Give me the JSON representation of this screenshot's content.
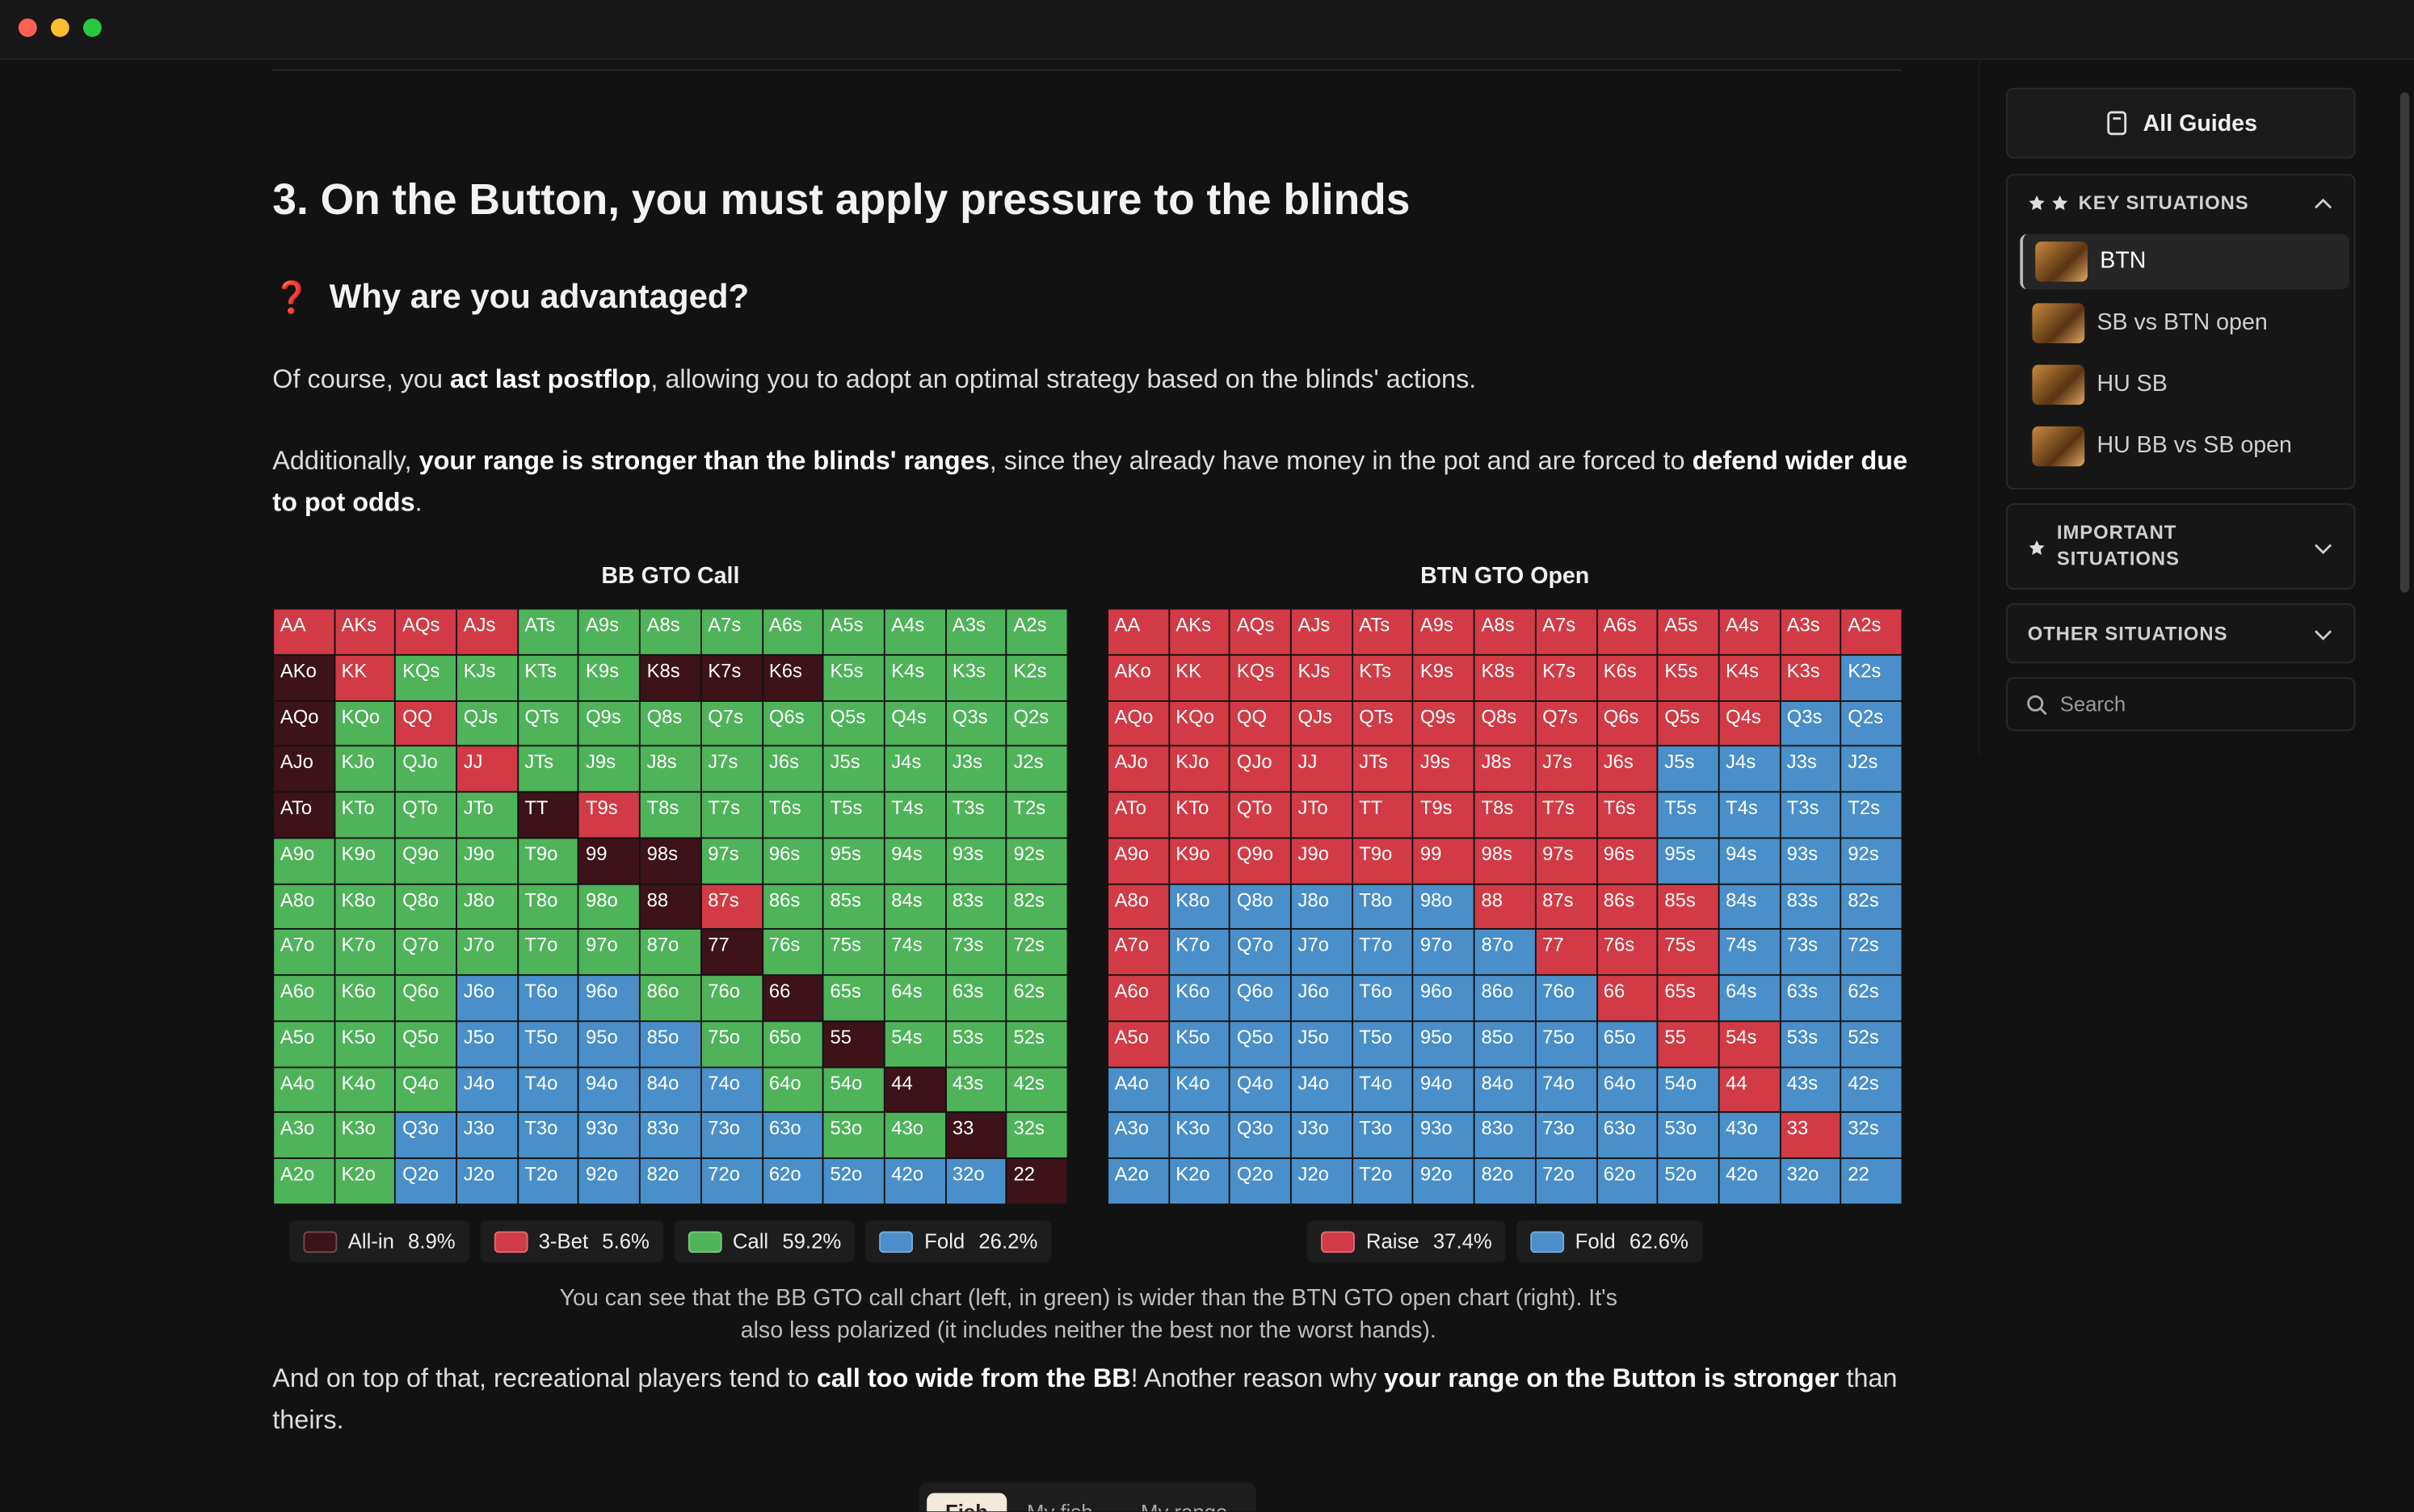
{
  "article": {
    "heading": "3. On the Button, you must apply pressure to the blinds",
    "subheading_icon": "❓",
    "subheading": "Why are you advantaged?",
    "paragraphs": [
      [
        {
          "text": "Of course, you "
        },
        {
          "text": "act last postflop",
          "bold": true
        },
        {
          "text": ", allowing you to adopt an optimal strategy based on the blinds' actions."
        }
      ],
      [
        {
          "text": "Additionally, "
        },
        {
          "text": "your range is stronger than the blinds' ranges",
          "bold": true
        },
        {
          "text": ", since they already have money in the pot and are forced to "
        },
        {
          "text": "defend wider due to pot odds",
          "bold": true
        },
        {
          "text": "."
        }
      ]
    ],
    "hands": [
      [
        "AA",
        "AKs",
        "AQs",
        "AJs",
        "ATs",
        "A9s",
        "A8s",
        "A7s",
        "A6s",
        "A5s",
        "A4s",
        "A3s",
        "A2s"
      ],
      [
        "AKo",
        "KK",
        "KQs",
        "KJs",
        "KTs",
        "K9s",
        "K8s",
        "K7s",
        "K6s",
        "K5s",
        "K4s",
        "K3s",
        "K2s"
      ],
      [
        "AQo",
        "KQo",
        "QQ",
        "QJs",
        "QTs",
        "Q9s",
        "Q8s",
        "Q7s",
        "Q6s",
        "Q5s",
        "Q4s",
        "Q3s",
        "Q2s"
      ],
      [
        "AJo",
        "KJo",
        "QJo",
        "JJ",
        "JTs",
        "J9s",
        "J8s",
        "J7s",
        "J6s",
        "J5s",
        "J4s",
        "J3s",
        "J2s"
      ],
      [
        "ATo",
        "KTo",
        "QTo",
        "JTo",
        "TT",
        "T9s",
        "T8s",
        "T7s",
        "T6s",
        "T5s",
        "T4s",
        "T3s",
        "T2s"
      ],
      [
        "A9o",
        "K9o",
        "Q9o",
        "J9o",
        "T9o",
        "99",
        "98s",
        "97s",
        "96s",
        "95s",
        "94s",
        "93s",
        "92s"
      ],
      [
        "A8o",
        "K8o",
        "Q8o",
        "J8o",
        "T8o",
        "98o",
        "88",
        "87s",
        "86s",
        "85s",
        "84s",
        "83s",
        "82s"
      ],
      [
        "A7o",
        "K7o",
        "Q7o",
        "J7o",
        "T7o",
        "97o",
        "87o",
        "77",
        "76s",
        "75s",
        "74s",
        "73s",
        "72s"
      ],
      [
        "A6o",
        "K6o",
        "Q6o",
        "J6o",
        "T6o",
        "96o",
        "86o",
        "76o",
        "66",
        "65s",
        "64s",
        "63s",
        "62s"
      ],
      [
        "A5o",
        "K5o",
        "Q5o",
        "J5o",
        "T5o",
        "95o",
        "85o",
        "75o",
        "65o",
        "55",
        "54s",
        "53s",
        "52s"
      ],
      [
        "A4o",
        "K4o",
        "Q4o",
        "J4o",
        "T4o",
        "94o",
        "84o",
        "74o",
        "64o",
        "54o",
        "44",
        "43s",
        "42s"
      ],
      [
        "A3o",
        "K3o",
        "Q3o",
        "J3o",
        "T3o",
        "93o",
        "83o",
        "73o",
        "63o",
        "53o",
        "43o",
        "33",
        "32s"
      ],
      [
        "A2o",
        "K2o",
        "Q2o",
        "J2o",
        "T2o",
        "92o",
        "82o",
        "72o",
        "62o",
        "52o",
        "42o",
        "32o",
        "22"
      ]
    ],
    "charts": [
      {
        "title": "BB GTO Call",
        "legend": [
          {
            "name": "All-in",
            "color": "#3d1219",
            "share": "8.9%"
          },
          {
            "name": "3-Bet",
            "color": "#d23a46",
            "share": "5.6%"
          },
          {
            "name": "Call",
            "color": "#4fb35a",
            "share": "59.2%"
          },
          {
            "name": "Fold",
            "color": "#4a8fc9",
            "share": "26.2%"
          }
        ],
        "actions": [
          [
            1,
            1,
            1,
            1,
            2,
            2,
            2,
            2,
            2,
            2,
            2,
            2,
            2
          ],
          [
            0,
            1,
            2,
            2,
            2,
            2,
            0,
            0,
            0,
            2,
            2,
            2,
            2
          ],
          [
            0,
            2,
            1,
            2,
            2,
            2,
            2,
            2,
            2,
            2,
            2,
            2,
            2
          ],
          [
            0,
            2,
            2,
            1,
            2,
            2,
            2,
            2,
            2,
            2,
            2,
            2,
            2
          ],
          [
            0,
            2,
            2,
            2,
            0,
            1,
            2,
            2,
            2,
            2,
            2,
            2,
            2
          ],
          [
            2,
            2,
            2,
            2,
            2,
            0,
            0,
            2,
            2,
            2,
            2,
            2,
            2
          ],
          [
            2,
            2,
            2,
            2,
            2,
            2,
            0,
            1,
            2,
            2,
            2,
            2,
            2
          ],
          [
            2,
            2,
            2,
            2,
            2,
            2,
            2,
            0,
            2,
            2,
            2,
            2,
            2
          ],
          [
            2,
            2,
            2,
            3,
            3,
            3,
            2,
            2,
            0,
            2,
            2,
            2,
            2
          ],
          [
            2,
            2,
            2,
            3,
            3,
            3,
            3,
            2,
            2,
            0,
            2,
            2,
            2
          ],
          [
            2,
            2,
            2,
            3,
            3,
            3,
            3,
            3,
            2,
            2,
            0,
            2,
            2
          ],
          [
            2,
            2,
            3,
            3,
            3,
            3,
            3,
            3,
            3,
            2,
            2,
            0,
            2
          ],
          [
            2,
            2,
            3,
            3,
            3,
            3,
            3,
            3,
            3,
            3,
            3,
            3,
            0
          ]
        ]
      },
      {
        "title": "BTN GTO Open",
        "legend": [
          {
            "name": "Raise",
            "color": "#d23a46",
            "share": "37.4%"
          },
          {
            "name": "Fold",
            "color": "#4a8fc9",
            "share": "62.6%"
          }
        ],
        "actions": [
          [
            0,
            0,
            0,
            0,
            0,
            0,
            0,
            0,
            0,
            0,
            0,
            0,
            0
          ],
          [
            0,
            0,
            0,
            0,
            0,
            0,
            0,
            0,
            0,
            0,
            0,
            0,
            1
          ],
          [
            0,
            0,
            0,
            0,
            0,
            0,
            0,
            0,
            0,
            0,
            0,
            1,
            1
          ],
          [
            0,
            0,
            0,
            0,
            0,
            0,
            0,
            0,
            0,
            1,
            1,
            1,
            1
          ],
          [
            0,
            0,
            0,
            0,
            0,
            0,
            0,
            0,
            0,
            1,
            1,
            1,
            1
          ],
          [
            0,
            0,
            0,
            0,
            0,
            0,
            0,
            0,
            0,
            1,
            1,
            1,
            1
          ],
          [
            0,
            1,
            1,
            1,
            1,
            1,
            0,
            0,
            0,
            0,
            1,
            1,
            1
          ],
          [
            0,
            1,
            1,
            1,
            1,
            1,
            1,
            0,
            0,
            0,
            1,
            1,
            1
          ],
          [
            0,
            1,
            1,
            1,
            1,
            1,
            1,
            1,
            0,
            0,
            1,
            1,
            1
          ],
          [
            0,
            1,
            1,
            1,
            1,
            1,
            1,
            1,
            1,
            0,
            0,
            1,
            1
          ],
          [
            1,
            1,
            1,
            1,
            1,
            1,
            1,
            1,
            1,
            1,
            0,
            1,
            1
          ],
          [
            1,
            1,
            1,
            1,
            1,
            1,
            1,
            1,
            1,
            1,
            1,
            0,
            1
          ],
          [
            1,
            1,
            1,
            1,
            1,
            1,
            1,
            1,
            1,
            1,
            1,
            1,
            1
          ]
        ]
      }
    ],
    "caption": "You can see that the BB GTO call chart (left, in green) is wider than the BTN GTO open chart (right). It's also less polarized (it includes neither the best nor the worst hands).",
    "closing": [
      {
        "text": "And on top of that, recreational players tend to "
      },
      {
        "text": "call too wide from the BB",
        "bold": true
      },
      {
        "text": "! Another reason why "
      },
      {
        "text": "your range on the Button is stronger",
        "bold": true
      },
      {
        "text": " than theirs."
      }
    ],
    "tabs": [
      "Fish",
      "My fish",
      "My range"
    ],
    "active_tab": 0
  },
  "sidebar": {
    "all_guides": "All Guides",
    "key_situations": {
      "title": "KEY SITUATIONS",
      "items": [
        "BTN",
        "SB vs BTN open",
        "HU SB",
        "HU BB vs SB open"
      ],
      "selected": 0
    },
    "important_situations": "IMPORTANT SITUATIONS",
    "other_situations": "OTHER SITUATIONS",
    "search_placeholder": "Search"
  }
}
